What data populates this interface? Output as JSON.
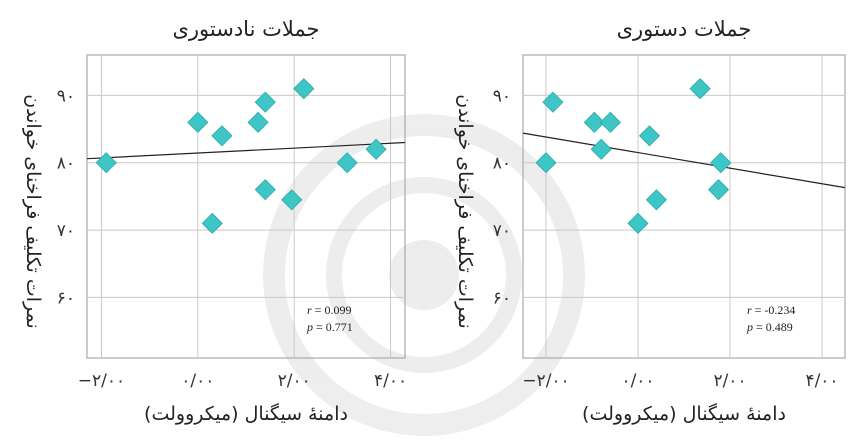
{
  "chart_data": [
    {
      "type": "scatter",
      "title": "جملات نادستوری",
      "xlabel": "دامنۀ سیگنال (میکروولت)",
      "ylabel": "نمرات تکلیف فراخنای خواندن",
      "xlim": [
        -2.3,
        4.3
      ],
      "ylim": [
        51,
        96
      ],
      "xticks": [
        -2,
        0,
        2,
        4
      ],
      "xtick_labels": [
        "−۲/۰۰",
        "۰/۰۰",
        "۲/۰۰",
        "۴/۰۰"
      ],
      "yticks": [
        60,
        70,
        80,
        90
      ],
      "ytick_labels": [
        "۶۰",
        "۷۰",
        "۸۰",
        "۹۰"
      ],
      "grid": true,
      "points": [
        {
          "x": -1.9,
          "y": 80
        },
        {
          "x": 0.0,
          "y": 86
        },
        {
          "x": 0.5,
          "y": 84
        },
        {
          "x": 0.3,
          "y": 71
        },
        {
          "x": 1.25,
          "y": 86
        },
        {
          "x": 1.4,
          "y": 89
        },
        {
          "x": 2.2,
          "y": 91
        },
        {
          "x": 1.4,
          "y": 76
        },
        {
          "x": 1.95,
          "y": 74.5
        },
        {
          "x": 3.1,
          "y": 80
        },
        {
          "x": 3.7,
          "y": 82
        }
      ],
      "fit_line": {
        "x": [
          -2.3,
          4.3
        ],
        "y": [
          80.6,
          83.0
        ]
      },
      "annotation": {
        "r": "0.099",
        "p": "0.771"
      },
      "marker_color": "#3ec6c6"
    },
    {
      "type": "scatter",
      "title": "جملات دستوری",
      "xlabel": "دامنۀ سیگنال (میکروولت)",
      "ylabel": "نمرات تکلیف فراخنای خواندن",
      "xlim": [
        -2.5,
        4.5
      ],
      "ylim": [
        51,
        96
      ],
      "xticks": [
        -2,
        0,
        2,
        4
      ],
      "xtick_labels": [
        "−۲/۰۰",
        "۰/۰۰",
        "۲/۰۰",
        "۴/۰۰"
      ],
      "yticks": [
        60,
        70,
        80,
        90
      ],
      "ytick_labels": [
        "۶۰",
        "۷۰",
        "۸۰",
        "۹۰"
      ],
      "grid": true,
      "points": [
        {
          "x": -2.0,
          "y": 80
        },
        {
          "x": -1.85,
          "y": 89
        },
        {
          "x": -0.95,
          "y": 86
        },
        {
          "x": -0.6,
          "y": 86
        },
        {
          "x": -0.8,
          "y": 82
        },
        {
          "x": 0.25,
          "y": 84
        },
        {
          "x": 0.0,
          "y": 71
        },
        {
          "x": 0.4,
          "y": 74.5
        },
        {
          "x": 1.35,
          "y": 91
        },
        {
          "x": 1.8,
          "y": 80
        },
        {
          "x": 1.75,
          "y": 76
        }
      ],
      "fit_line": {
        "x": [
          -2.5,
          4.5
        ],
        "y": [
          84.4,
          76.3
        ]
      },
      "annotation": {
        "r": "-0.234",
        "p": "0.489"
      },
      "marker_color": "#3ec6c6"
    }
  ]
}
